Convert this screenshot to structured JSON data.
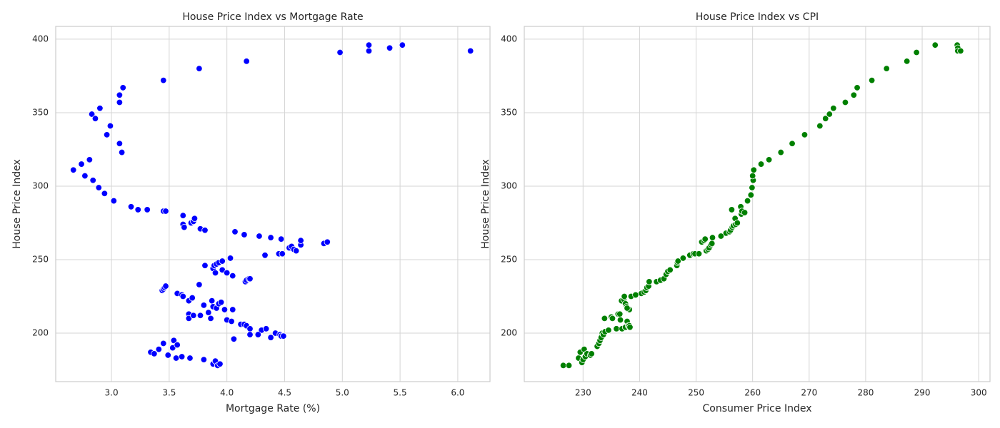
{
  "chart_data": [
    {
      "type": "scatter",
      "title": "House Price Index vs Mortgage Rate",
      "x_label": "Mortgage Rate (%)",
      "y_label": "House Price Index",
      "color": "#0000ff",
      "grid": true,
      "x": [
        2.67,
        2.74,
        2.77,
        2.81,
        2.84,
        2.89,
        2.94,
        3.02,
        3.17,
        3.23,
        3.31,
        3.45,
        3.47,
        2.83,
        2.86,
        2.9,
        2.96,
        2.99,
        3.07,
        3.07,
        3.07,
        3.09,
        3.1,
        3.45,
        3.76,
        4.17,
        4.98,
        5.23,
        5.23,
        5.41,
        5.52,
        6.11,
        3.62,
        3.62,
        3.63,
        3.69,
        3.71,
        3.72,
        3.77,
        3.81,
        4.07,
        4.15,
        4.28,
        4.38,
        4.47,
        4.33,
        4.45,
        4.48,
        4.54,
        4.56,
        4.58,
        4.6,
        4.64,
        4.64,
        4.84,
        4.87,
        3.81,
        3.88,
        3.89,
        3.91,
        3.93,
        3.96,
        4.03,
        3.9,
        3.96,
        4.0,
        4.05,
        4.16,
        4.17,
        4.19,
        4.2,
        3.76,
        3.44,
        3.45,
        3.46,
        3.47,
        3.57,
        3.61,
        3.62,
        3.67,
        3.7,
        3.8,
        3.87,
        3.88,
        3.91,
        3.93,
        3.95,
        3.98,
        4.05,
        3.67,
        3.67,
        3.71,
        3.77,
        3.84,
        3.86,
        4.0,
        4.04,
        4.12,
        4.15,
        4.17,
        4.2,
        4.3,
        4.34,
        4.2,
        4.27,
        4.38,
        4.42,
        4.46,
        4.47,
        4.49,
        4.06,
        3.34,
        3.37,
        3.41,
        3.45,
        3.49,
        3.53,
        3.54,
        3.56,
        3.57,
        3.61,
        3.68,
        3.8,
        3.88,
        3.9,
        3.92,
        3.94
      ],
      "values": [
        311,
        315,
        307,
        318,
        304,
        299,
        295,
        290,
        286,
        284,
        284,
        283,
        283,
        349,
        346,
        353,
        335,
        341,
        329,
        362,
        357,
        323,
        367,
        372,
        380,
        385,
        391,
        392,
        396,
        394,
        396,
        392,
        280,
        274,
        272,
        275,
        276,
        278,
        271,
        270,
        269,
        267,
        266,
        265,
        264,
        253,
        254,
        254,
        258,
        259,
        257,
        256,
        260,
        263,
        261,
        262,
        246,
        244,
        246,
        247,
        248,
        249,
        251,
        241,
        243,
        241,
        239,
        235,
        236,
        237,
        237,
        233,
        229,
        230,
        231,
        232,
        227,
        226,
        225,
        222,
        224,
        219,
        222,
        218,
        217,
        220,
        221,
        216,
        216,
        213,
        210,
        212,
        212,
        214,
        210,
        209,
        208,
        206,
        206,
        205,
        203,
        202,
        203,
        199,
        199,
        197,
        200,
        199,
        198,
        198,
        196,
        187,
        186,
        189,
        193,
        185,
        190,
        195,
        183,
        192,
        184,
        183,
        182,
        179,
        181,
        178,
        179
      ],
      "xlim": [
        2.517,
        6.279
      ],
      "ylim": [
        167,
        408.7
      ],
      "xticks": [
        {
          "value": 3,
          "label": "3.0"
        },
        {
          "value": 3.5,
          "label": "3.5"
        },
        {
          "value": 4,
          "label": "4.0"
        },
        {
          "value": 4.5,
          "label": "4.5"
        },
        {
          "value": 5,
          "label": "5.0"
        },
        {
          "value": 5.5,
          "label": "5.5"
        },
        {
          "value": 6,
          "label": "6.0"
        }
      ],
      "yticks": [
        200,
        250,
        300,
        350,
        400
      ]
    },
    {
      "type": "scatter",
      "title": "House Price Index vs CPI",
      "x_label": "Consumer Price Index",
      "y_label": "House Price Index",
      "color": "#008000",
      "grid": true,
      "x": [
        226.5,
        227.5,
        229.2,
        229.5,
        229.8,
        230.0,
        230.2,
        230.4,
        230.7,
        231.3,
        231.5,
        232.5,
        232.8,
        233.0,
        233.2,
        233.4,
        233.6,
        233.9,
        233.8,
        234.5,
        235.0,
        235.2,
        235.9,
        236.2,
        236.5,
        236.6,
        236.9,
        236.8,
        237.2,
        237.5,
        237.7,
        238.0,
        238.2,
        237.5,
        237.8,
        238.0,
        238.2,
        238.3,
        237.3,
        237.8,
        238.5,
        239.3,
        240.3,
        240.8,
        241.1,
        241.3,
        241.6,
        241.7,
        243.0,
        243.7,
        244.3,
        244.7,
        245.0,
        245.4,
        246.6,
        246.7,
        246.8,
        247.7,
        248.9,
        249.5,
        249.8,
        250.5,
        251.0,
        251.4,
        251.6,
        251.8,
        252.1,
        252.3,
        252.6,
        252.8,
        252.9,
        254.4,
        255.3,
        255.9,
        256.1,
        256.4,
        256.6,
        256.9,
        257.0,
        257.3,
        256.3,
        257.9,
        258.0,
        258.1,
        258.6,
        259.1,
        259.7,
        259.9,
        260.1,
        260.0,
        260.2,
        261.5,
        262.9,
        265.0,
        267.0,
        269.2,
        271.9,
        272.9,
        273.6,
        274.3,
        276.4,
        277.9,
        278.5,
        281.1,
        283.7,
        287.3,
        289.0,
        292.3,
        296.2,
        296.3,
        296.3,
        296.8
      ],
      "values": [
        178,
        178,
        183,
        187,
        180,
        182,
        189,
        184,
        186,
        185,
        186,
        191,
        193,
        195,
        197,
        200,
        199,
        201,
        210,
        202,
        211,
        210,
        203,
        213,
        213,
        209,
        203,
        222,
        223,
        220,
        218,
        216,
        216,
        204,
        208,
        205,
        205,
        204,
        225,
        217,
        225,
        226,
        227,
        228,
        229,
        231,
        232,
        235,
        235,
        236,
        237,
        240,
        242,
        243,
        246,
        248,
        249,
        251,
        253,
        254,
        254,
        254,
        262,
        263,
        264,
        256,
        257,
        258,
        260,
        261,
        265,
        266,
        268,
        269,
        270,
        272,
        273,
        278,
        274,
        275,
        284,
        286,
        281,
        283,
        282,
        290,
        294,
        299,
        304,
        307,
        311,
        315,
        318,
        323,
        329,
        335,
        341,
        346,
        349,
        353,
        357,
        362,
        367,
        372,
        380,
        385,
        391,
        396,
        396,
        394,
        392,
        392
      ],
      "xlim": [
        219.6,
        302.0
      ],
      "ylim": [
        167,
        408.7
      ],
      "xticks": [
        230,
        240,
        250,
        260,
        270,
        280,
        290,
        300
      ],
      "yticks": [
        200,
        250,
        300,
        350,
        400
      ]
    }
  ]
}
